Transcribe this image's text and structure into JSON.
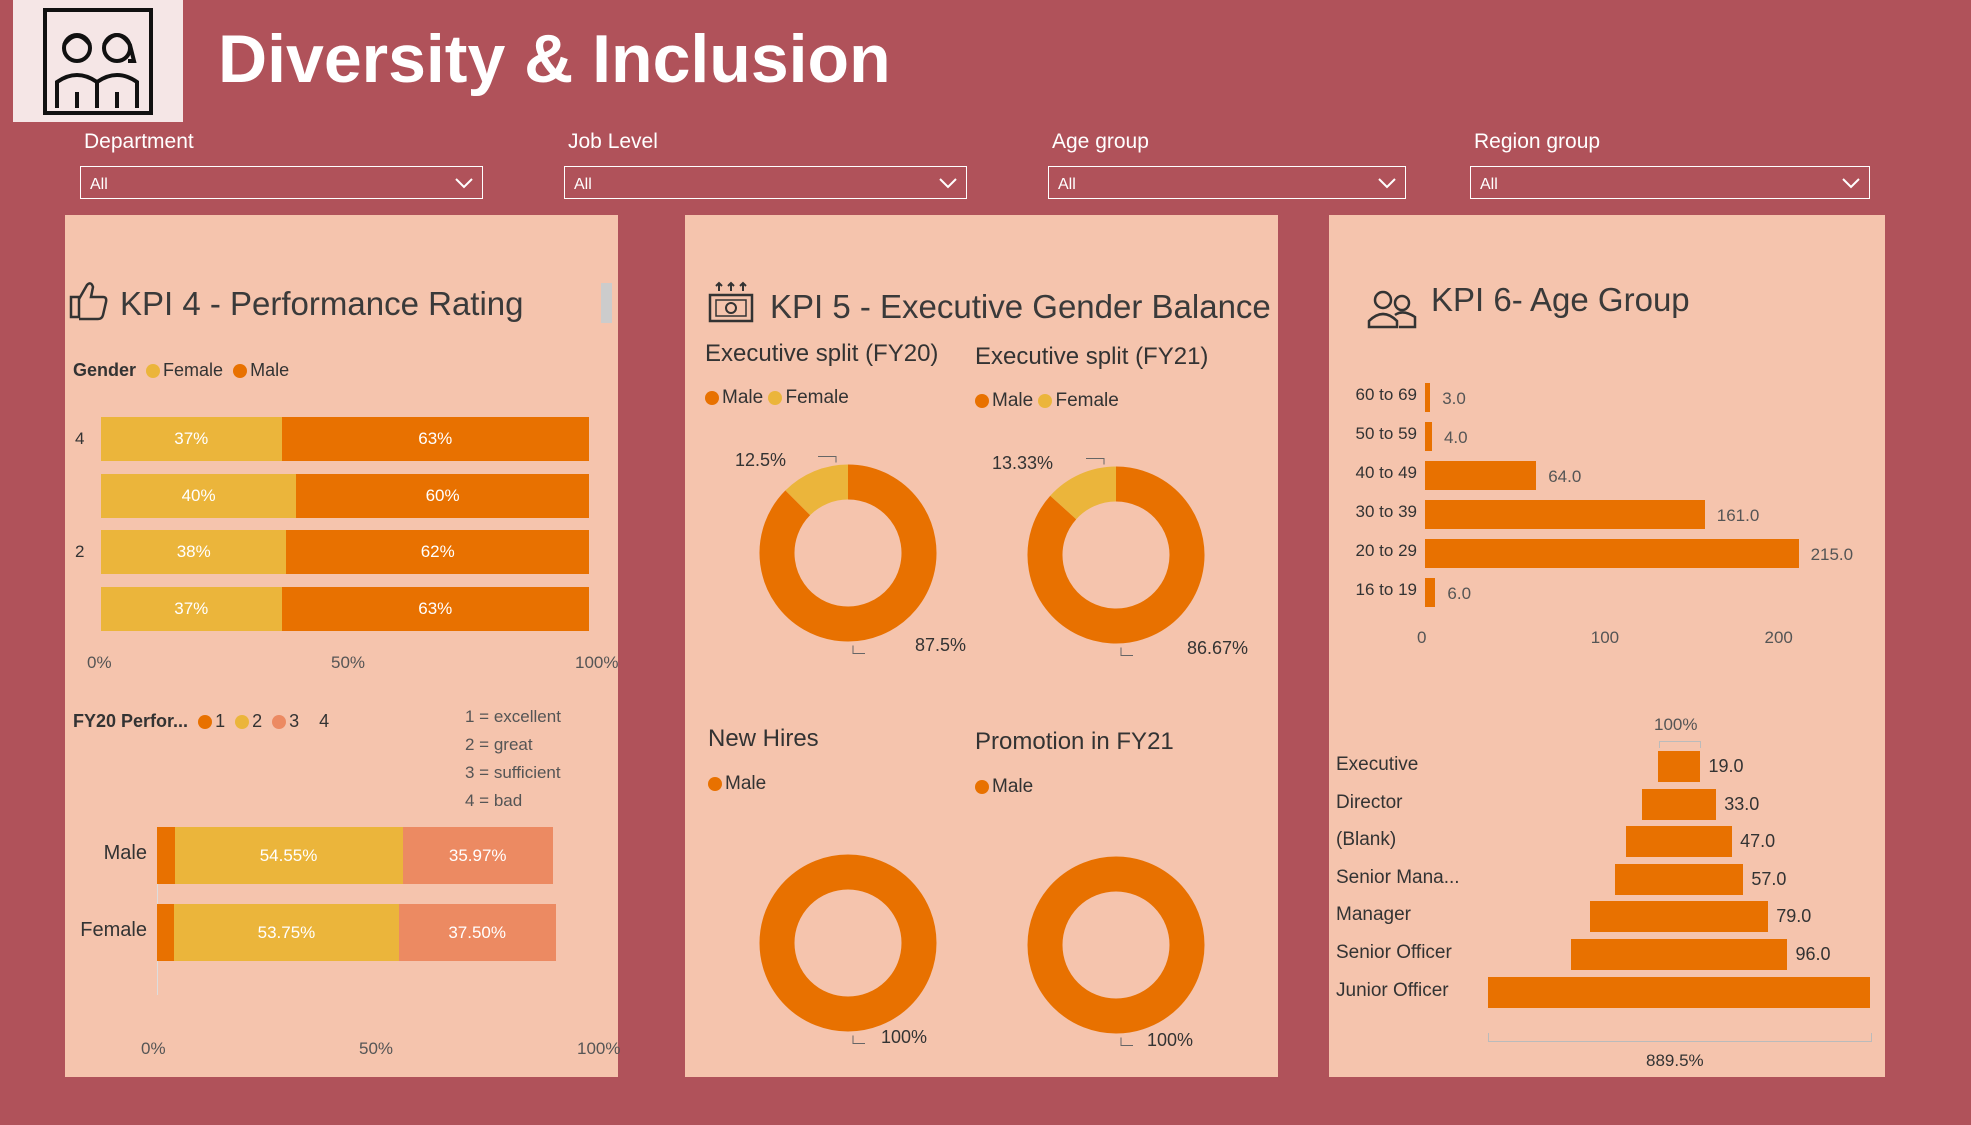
{
  "header": {
    "title": "Diversity & Inclusion",
    "logo_icon": "people-icon"
  },
  "slicers": [
    {
      "label": "Department",
      "value": "All"
    },
    {
      "label": "Job Level",
      "value": "All"
    },
    {
      "label": "Age group",
      "value": "All"
    },
    {
      "label": "Region group",
      "value": "All"
    }
  ],
  "colors": {
    "background": "#b0525a",
    "card": "#f5c4ad",
    "male": "#e87100",
    "female": "#ebb53b",
    "rating3": "#ec8a62"
  },
  "kpi4": {
    "title": "KPI 4 - Performance Rating",
    "icon": "thumbs-up-icon",
    "legend_title": "Gender",
    "legend": [
      "Female",
      "Male"
    ],
    "chart_data": {
      "type": "bar",
      "stacked": "100%",
      "categories": [
        "4",
        "",
        "2",
        ""
      ],
      "series": [
        {
          "name": "Female",
          "values": [
            37,
            40,
            38,
            37
          ]
        },
        {
          "name": "Male",
          "values": [
            63,
            60,
            62,
            63
          ]
        }
      ],
      "data_labels": [
        [
          "37%",
          "63%"
        ],
        [
          "40%",
          "60%"
        ],
        [
          "38%",
          "62%"
        ],
        [
          "37%",
          "63%"
        ]
      ],
      "xticks": [
        "0%",
        "50%",
        "100%"
      ]
    },
    "fy20": {
      "legend_title": "FY20 Perfor...",
      "legend": [
        "1",
        "2",
        "3",
        "4"
      ],
      "notes": [
        "1 = excellent",
        "2 = great",
        "3 = sufficient",
        "4 = bad"
      ],
      "chart_data": {
        "type": "bar",
        "stacked": "100%",
        "categories": [
          "Male",
          "Female"
        ],
        "series": [
          {
            "name": "1",
            "values": [
              4.2,
              4.1
            ]
          },
          {
            "name": "2",
            "values": [
              54.55,
              53.75
            ]
          },
          {
            "name": "3",
            "values": [
              35.97,
              37.5
            ]
          }
        ],
        "data_labels": [
          [
            "54.55%",
            "35.97%"
          ],
          [
            "53.75%",
            "37.50%"
          ]
        ],
        "xticks": [
          "0%",
          "50%",
          "100%"
        ]
      }
    }
  },
  "kpi5": {
    "title": "KPI 5 - Executive Gender Balance",
    "icon": "cash-icon",
    "charts": [
      {
        "title": "Executive split (FY20)",
        "legend": [
          "Male",
          "Female"
        ],
        "chart_data": {
          "type": "pie",
          "labels": [
            "Male",
            "Female"
          ],
          "values": [
            87.5,
            12.5
          ]
        },
        "labels": [
          "12.5%",
          "87.5%"
        ]
      },
      {
        "title": "Executive split (FY21)",
        "legend": [
          "Male",
          "Female"
        ],
        "chart_data": {
          "type": "pie",
          "labels": [
            "Male",
            "Female"
          ],
          "values": [
            86.67,
            13.33
          ]
        },
        "labels": [
          "13.33%",
          "86.67%"
        ]
      },
      {
        "title": "New Hires",
        "legend": [
          "Male"
        ],
        "chart_data": {
          "type": "pie",
          "labels": [
            "Male"
          ],
          "values": [
            100
          ]
        },
        "labels": [
          "100%"
        ]
      },
      {
        "title": "Promotion in FY21",
        "legend": [
          "Male"
        ],
        "chart_data": {
          "type": "pie",
          "labels": [
            "Male"
          ],
          "values": [
            100
          ]
        },
        "labels": [
          "100%"
        ]
      }
    ]
  },
  "kpi6": {
    "title": "KPI 6- Age Group",
    "icon": "users-icon",
    "age_chart": {
      "type": "bar",
      "categories": [
        "60 to 69",
        "50 to 59",
        "40 to 49",
        "30 to 39",
        "20 to 29",
        "16 to 19"
      ],
      "values": [
        3.0,
        4.0,
        64.0,
        161.0,
        215.0,
        6.0
      ],
      "data_labels": [
        "3.0",
        "4.0",
        "64.0",
        "161.0",
        "215.0",
        "6.0"
      ],
      "xticks": [
        "0",
        "100",
        "200"
      ],
      "xlim": [
        0,
        240
      ]
    },
    "level_chart": {
      "type": "bar",
      "categories": [
        "Executive",
        "Director",
        "(Blank)",
        "Senior Mana...",
        "Manager",
        "Senior Officer",
        "Junior Officer"
      ],
      "values": [
        19.0,
        33.0,
        47.0,
        57.0,
        79.0,
        96.0,
        169.0
      ],
      "data_labels": [
        "19.0",
        "33.0",
        "47.0",
        "57.0",
        "79.0",
        "96.0",
        ""
      ],
      "top_label": "100%",
      "bottom_label": "889.5%"
    }
  }
}
